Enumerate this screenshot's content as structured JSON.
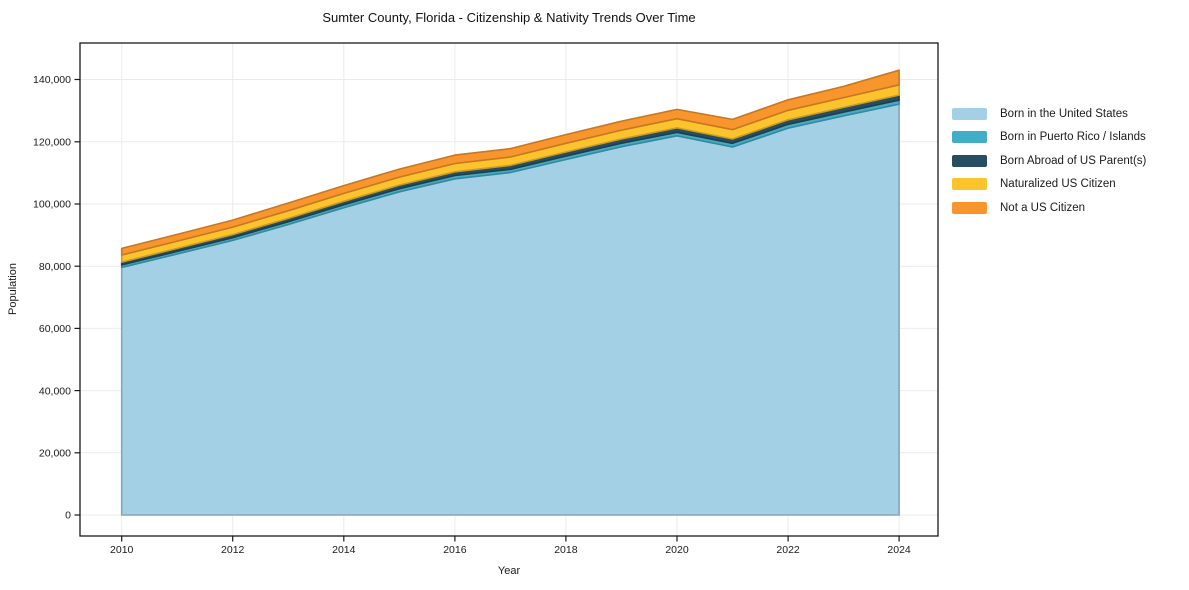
{
  "chart_data": {
    "type": "area",
    "stacked": true,
    "title": "Sumter County, Florida - Citizenship & Nativity Trends Over Time",
    "xlabel": "Year",
    "ylabel": "Population",
    "grid": true,
    "legend_position": "right of plot, no border",
    "x": [
      2010,
      2011,
      2012,
      2013,
      2014,
      2015,
      2016,
      2017,
      2018,
      2019,
      2020,
      2021,
      2022,
      2023,
      2024
    ],
    "series": [
      {
        "key": "born-in-us",
        "name": "Born in the United States",
        "color": "#a4d0e6",
        "values": [
          79600,
          83900,
          88300,
          93400,
          98800,
          103900,
          108100,
          110100,
          114300,
          118400,
          121900,
          118300,
          124400,
          128300,
          132100
        ]
      },
      {
        "key": "born-puerto-rico-islands",
        "name": "Born in Puerto Rico / Islands",
        "color": "#41adc6",
        "values": [
          800,
          850,
          850,
          900,
          950,
          1000,
          1050,
          1050,
          1100,
          1150,
          1150,
          1200,
          1200,
          1250,
          1300
        ]
      },
      {
        "key": "born-abroad-us-parents",
        "name": "Born Abroad of US Parent(s)",
        "color": "#264d61",
        "values": [
          900,
          950,
          1000,
          1050,
          1100,
          1150,
          1200,
          1250,
          1300,
          1350,
          1400,
          1400,
          1450,
          1500,
          1600
        ]
      },
      {
        "key": "naturalized-citizen",
        "name": "Naturalized US Citizen",
        "color": "#fcc32d",
        "values": [
          2300,
          2350,
          2400,
          2500,
          2550,
          2600,
          2650,
          2700,
          2800,
          2850,
          2950,
          3000,
          3050,
          3150,
          3300
        ]
      },
      {
        "key": "not-us-citizen",
        "name": "Not a US Citizen",
        "color": "#f8962d",
        "values": [
          2100,
          2150,
          2250,
          2450,
          2500,
          2550,
          2700,
          2700,
          2800,
          2850,
          3000,
          3300,
          3400,
          3600,
          4700
        ]
      }
    ],
    "xtick_values": [
      2010,
      2012,
      2014,
      2016,
      2018,
      2020,
      2022,
      2024
    ],
    "xtick_labels": [
      "2010",
      "2012",
      "2014",
      "2016",
      "2018",
      "2020",
      "2022",
      "2024"
    ],
    "ytick_values": [
      0,
      20000,
      40000,
      60000,
      80000,
      100000,
      120000,
      140000
    ],
    "ytick_labels": [
      "0",
      "20,000",
      "40,000",
      "60,000",
      "80,000",
      "100,000",
      "120,000",
      "140,000"
    ],
    "xlim": [
      2009.25,
      2024.7
    ],
    "ylim": [
      -6750,
      151750
    ]
  }
}
